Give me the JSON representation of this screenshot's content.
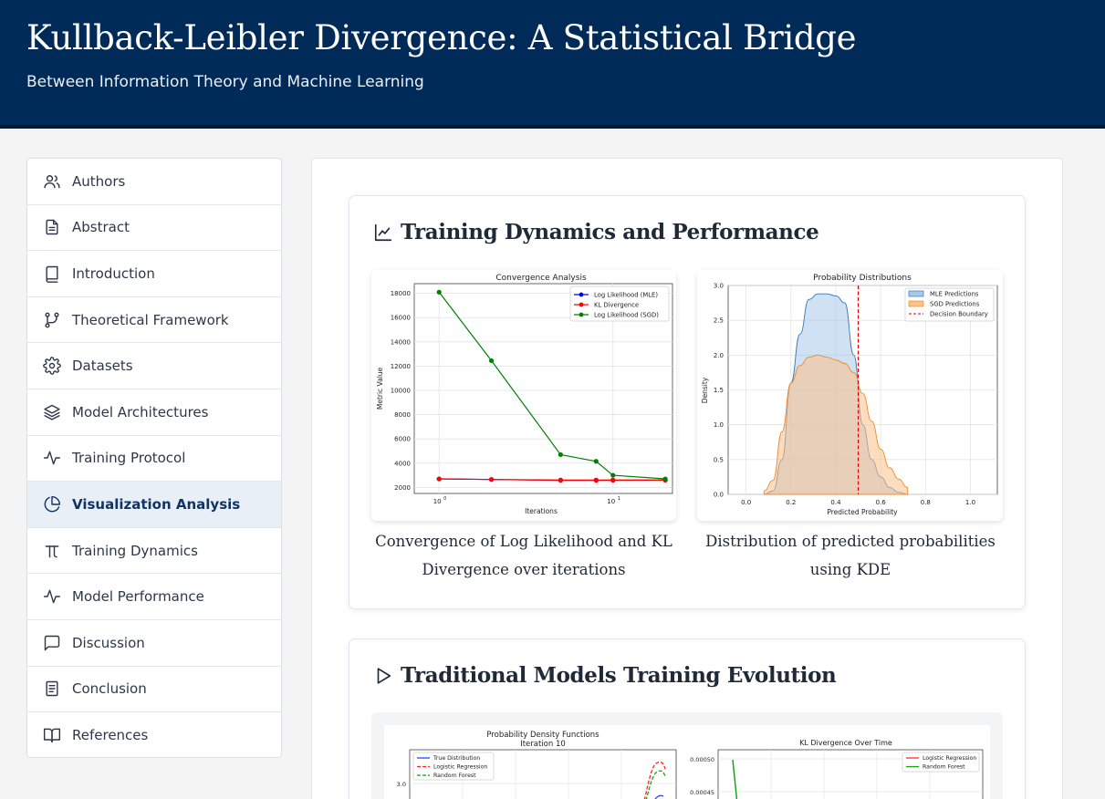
{
  "header": {
    "title": "Kullback-Leibler Divergence: A Statistical Bridge",
    "subtitle": "Between Information Theory and Machine Learning"
  },
  "sidebar": {
    "items": [
      {
        "label": "Authors",
        "icon": "users-icon"
      },
      {
        "label": "Abstract",
        "icon": "file-text-icon"
      },
      {
        "label": "Introduction",
        "icon": "book-icon"
      },
      {
        "label": "Theoretical Framework",
        "icon": "git-branch-icon"
      },
      {
        "label": "Datasets",
        "icon": "gear-icon"
      },
      {
        "label": "Model Architectures",
        "icon": "layers-icon"
      },
      {
        "label": "Training Protocol",
        "icon": "activity-icon"
      },
      {
        "label": "Visualization Analysis",
        "icon": "pie-chart-icon",
        "active": true
      },
      {
        "label": "Training Dynamics",
        "icon": "pi-icon"
      },
      {
        "label": "Model Performance",
        "icon": "activity-icon"
      },
      {
        "label": "Discussion",
        "icon": "message-icon"
      },
      {
        "label": "Conclusion",
        "icon": "document-icon"
      },
      {
        "label": "References",
        "icon": "open-book-icon"
      }
    ]
  },
  "sections": {
    "training_dynamics": {
      "title": "Training Dynamics and Performance",
      "icon": "line-chart-icon",
      "caption_left": "Convergence of Log Likelihood and KL Divergence over iterations",
      "caption_right": "Distribution of predicted probabilities using KDE"
    },
    "traditional": {
      "title": "Traditional Models Training Evolution",
      "icon": "play-icon"
    }
  },
  "chart_data": [
    {
      "type": "line",
      "title": "Convergence Analysis",
      "xlabel": "Iterations",
      "ylabel": "Metric Value",
      "xscale": "log",
      "xtick_labels": [
        "10",
        "10"
      ],
      "xtick_exponents": [
        "0",
        "1"
      ],
      "yticks": [
        2000,
        4000,
        6000,
        8000,
        10000,
        12000,
        14000,
        16000,
        18000
      ],
      "ylim": [
        1500,
        18800
      ],
      "x": [
        1,
        2,
        5,
        8,
        10,
        20
      ],
      "series": [
        {
          "name": "Log Likelihood (MLE)",
          "color": "#0000ff",
          "values": [
            2700,
            2650,
            2600,
            2600,
            2600,
            2600
          ]
        },
        {
          "name": "KL Divergence",
          "color": "#ff0000",
          "values": [
            2700,
            2650,
            2580,
            2580,
            2590,
            2600
          ]
        },
        {
          "name": "Log Likelihood (SGD)",
          "color": "#008000",
          "values": [
            18100,
            12450,
            4700,
            4150,
            3000,
            2700
          ]
        }
      ],
      "legend": "top-right",
      "grid": true
    },
    {
      "type": "area",
      "title": "Probability Distributions",
      "xlabel": "Predicted Probability",
      "ylabel": "Density",
      "xticks": [
        "0.0",
        "0.2",
        "0.4",
        "0.6",
        "0.8",
        "1.0"
      ],
      "yticks": [
        "0.0",
        "0.5",
        "1.0",
        "1.5",
        "2.0",
        "2.5",
        "3.0"
      ],
      "xlim": [
        -0.08,
        1.12
      ],
      "ylim": [
        0,
        3.0
      ],
      "x": [
        0.08,
        0.12,
        0.16,
        0.2,
        0.24,
        0.28,
        0.32,
        0.36,
        0.4,
        0.44,
        0.48,
        0.52,
        0.56,
        0.6,
        0.64,
        0.68,
        0.72
      ],
      "series": [
        {
          "name": "MLE Predictions",
          "color": "#a8c8e8",
          "values": [
            0.0,
            0.05,
            0.5,
            1.6,
            2.3,
            2.8,
            2.88,
            2.88,
            2.85,
            2.75,
            2.0,
            1.0,
            0.5,
            0.25,
            0.1,
            0.03,
            0.0
          ]
        },
        {
          "name": "SGD Predictions",
          "color": "#fdc18a",
          "values": [
            0.05,
            0.2,
            0.9,
            1.6,
            1.85,
            1.97,
            2.0,
            1.97,
            1.93,
            1.88,
            1.75,
            1.45,
            1.05,
            0.65,
            0.38,
            0.22,
            0.1
          ]
        }
      ],
      "vline": {
        "name": "Decision Boundary",
        "x": 0.5,
        "color": "#e00000"
      },
      "legend": "top-right",
      "grid": true
    },
    {
      "type": "line",
      "title": "Probability Density Functions\nIteration 10",
      "series": [
        {
          "name": "True Distribution",
          "color": "#1f3fff"
        },
        {
          "name": "Logistic Regression",
          "color": "#ff2020"
        },
        {
          "name": "Random Forest",
          "color": "#10a010"
        }
      ],
      "ytick_labels": [
        "3.0"
      ],
      "legend": "top-left"
    },
    {
      "type": "line",
      "title": "KL Divergence Over Time",
      "series": [
        {
          "name": "Logistic Regression",
          "color": "#ff2020"
        },
        {
          "name": "Random Forest",
          "color": "#10a010"
        }
      ],
      "ytick_labels": [
        "0.00050",
        "0.00045"
      ],
      "legend": "top-right"
    }
  ]
}
